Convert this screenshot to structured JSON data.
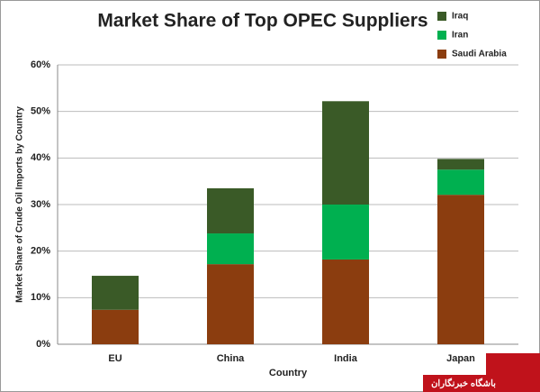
{
  "chart_data": {
    "type": "stacked-bar",
    "title": "Market Share of Top OPEC Suppliers",
    "x_label": "Country",
    "y_label": "Market Share of Crude Oil Imports by Country",
    "categories": [
      "EU",
      "China",
      "India",
      "Japan"
    ],
    "series": [
      {
        "name": "Saudi Arabia",
        "color": "#8b3d0f",
        "values": [
          7.4,
          17.2,
          18.2,
          32.1
        ]
      },
      {
        "name": "Iran",
        "color": "#00b050",
        "values": [
          0,
          6.6,
          11.8,
          5.4
        ]
      },
      {
        "name": "Iraq",
        "color": "#3a5a27",
        "values": [
          7.3,
          9.7,
          22.2,
          2.3
        ]
      }
    ],
    "ylim": [
      0,
      60
    ],
    "yticks": [
      {
        "value": 0,
        "label": "0%"
      },
      {
        "value": 10,
        "label": "10%"
      },
      {
        "value": 20,
        "label": "20%"
      },
      {
        "value": 30,
        "label": "30%"
      },
      {
        "value": 40,
        "label": "40%"
      },
      {
        "value": 50,
        "label": "50%"
      },
      {
        "value": 60,
        "label": "60%"
      }
    ],
    "grid": true,
    "legend": "top-right",
    "watermark": "باشگاه خبرنگاران"
  }
}
